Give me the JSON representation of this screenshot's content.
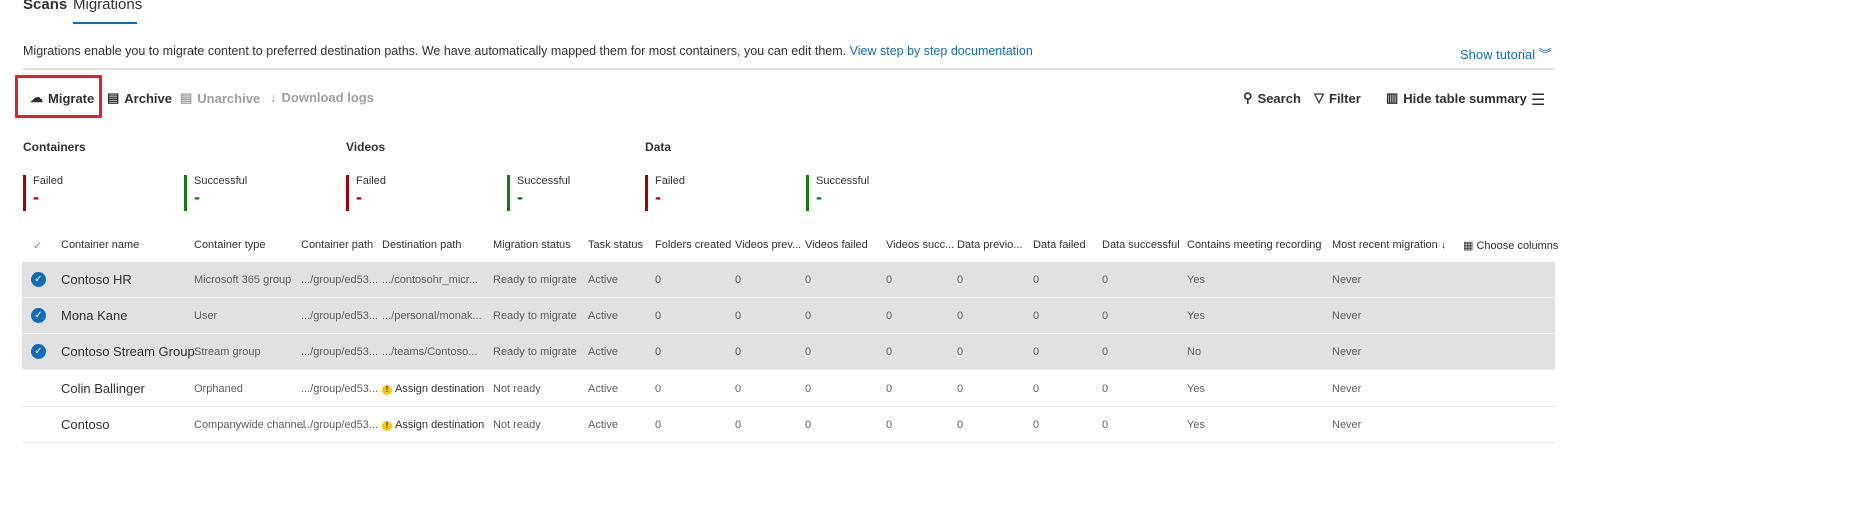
{
  "tabs": [
    {
      "label": "Scans",
      "active": false
    },
    {
      "label": "Migrations",
      "active": true
    }
  ],
  "description": {
    "text": "Migrations enable you to migrate content to preferred destination paths. We have automatically mapped them for most containers, you can edit them.",
    "link": "View step by step documentation"
  },
  "show_tutorial": "Show tutorial",
  "toolbar": {
    "migrate": "Migrate",
    "archive": "Archive",
    "unarchive": "Unarchive",
    "download_logs": "Download logs",
    "search": "Search",
    "filter": "Filter",
    "hide_summary": "Hide table summary"
  },
  "summary": [
    {
      "title": "Containers",
      "failed_label": "Failed",
      "failed_value": "-",
      "success_label": "Successful",
      "success_value": "-"
    },
    {
      "title": "Videos",
      "failed_label": "Failed",
      "failed_value": "-",
      "success_label": "Successful",
      "success_value": "-"
    },
    {
      "title": "Data",
      "failed_label": "Failed",
      "failed_value": "-",
      "success_label": "Successful",
      "success_value": "-"
    }
  ],
  "colors": {
    "failed": "#a80000",
    "success": "#107c10",
    "accent": "#0f6cbd",
    "highlight": "#e0202a"
  },
  "table": {
    "headers": [
      "Container name",
      "Container type",
      "Container path",
      "Destination path",
      "Migration status",
      "Task status",
      "Folders created",
      "Videos prev...",
      "Videos failed",
      "Videos succ...",
      "Data previo...",
      "Data failed",
      "Data successful",
      "Contains meeting recording",
      "Most recent migration"
    ],
    "choose_columns": "Choose columns",
    "rows": [
      {
        "selected": true,
        "cells": [
          "Contoso HR",
          "Microsoft 365 group",
          ".../group/ed53...",
          ".../contosohr_micr...",
          "Ready to migrate",
          "Active",
          "0",
          "0",
          "0",
          "0",
          "0",
          "0",
          "0",
          "Yes",
          "Never"
        ]
      },
      {
        "selected": true,
        "cells": [
          "Mona Kane",
          "User",
          ".../group/ed53...",
          ".../personal/monak...",
          "Ready to migrate",
          "Active",
          "0",
          "0",
          "0",
          "0",
          "0",
          "0",
          "0",
          "Yes",
          "Never"
        ]
      },
      {
        "selected": true,
        "cells": [
          "Contoso Stream Group",
          "Stream group",
          ".../group/ed53...",
          ".../teams/Contoso...",
          "Ready to migrate",
          "Active",
          "0",
          "0",
          "0",
          "0",
          "0",
          "0",
          "0",
          "No",
          "Never"
        ]
      },
      {
        "selected": false,
        "warn": true,
        "cells": [
          "Colin Ballinger",
          "Orphaned",
          ".../group/ed53...",
          "Assign destination",
          "Not ready",
          "Active",
          "0",
          "0",
          "0",
          "0",
          "0",
          "0",
          "0",
          "Yes",
          "Never"
        ]
      },
      {
        "selected": false,
        "warn": true,
        "cells": [
          "Contoso",
          "Companywide channel",
          ".../group/ed53...",
          "Assign destination",
          "Not ready",
          "Active",
          "0",
          "0",
          "0",
          "0",
          "0",
          "0",
          "0",
          "Yes",
          "Never"
        ]
      }
    ]
  }
}
